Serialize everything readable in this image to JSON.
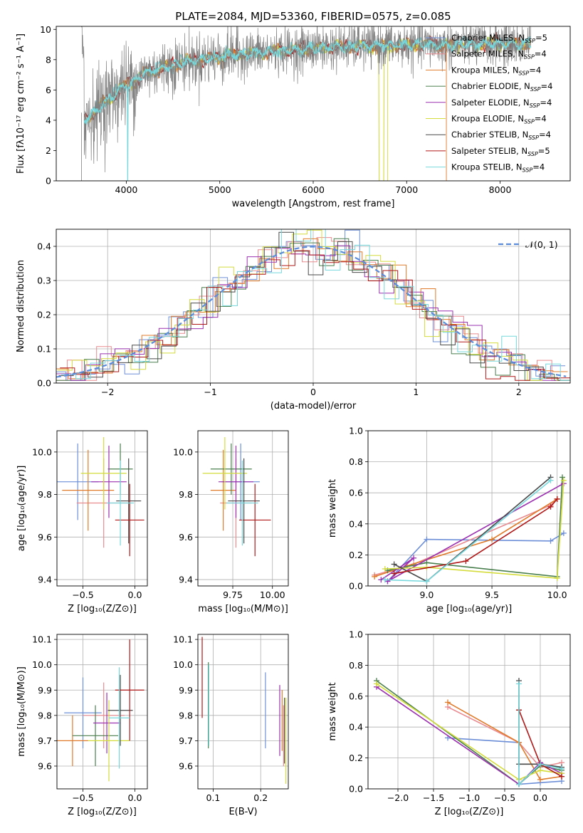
{
  "figure": {
    "title": "PLATE=2084, MJD=53360, FIBERID=0575, z=0.085"
  },
  "colors": {
    "Chabrier MILES": "#6d8fd8",
    "Salpeter MILES": "#e98a8f",
    "Kroupa MILES": "#e07b2b",
    "Chabrier ELODIE": "#4a7f4e",
    "Salpeter ELODIE": "#9b30b0",
    "Kroupa ELODIE": "#d4dc3c",
    "Chabrier STELIB": "#4a4a4a",
    "Salpeter STELIB": "#b01818",
    "Kroupa STELIB": "#76d8dc",
    "data": "#808080",
    "gaussian": "#5b8cdc"
  },
  "chart_data": [
    {
      "id": "spectrum",
      "type": "line",
      "xlabel": "wavelength [Angstrom, rest frame]",
      "ylabel": "Flux [fλ10⁻¹⁷ erg cm⁻² s⁻¹ A⁻¹]",
      "xlim": [
        3250,
        8750
      ],
      "ylim": [
        0,
        10.2
      ],
      "xticks": [
        "4000",
        "5000",
        "6000",
        "7000",
        "8000"
      ],
      "yticks": [
        "0",
        "2",
        "4",
        "6",
        "8",
        "10"
      ],
      "grid": false,
      "legend_position": "right",
      "legend": [
        "Chabrier MILES, N_SSP=5",
        "Salpeter MILES, N_SSP=4",
        "Kroupa MILES, N_SSP=4",
        "Chabrier ELODIE, N_SSP=4",
        "Salpeter ELODIE, N_SSP=4",
        "Kroupa ELODIE, N_SSP=4",
        "Chabrier STELIB, N_SSP=4",
        "Salpeter STELIB, N_SSP=5",
        "Kroupa STELIB, N_SSP=4"
      ],
      "continuum": {
        "x": [
          3550,
          3650,
          3750,
          3850,
          3950,
          4050,
          4200,
          4400,
          4600,
          4800,
          5000,
          5200,
          5400,
          5600,
          5800,
          6000,
          6200,
          6400,
          6600,
          6800,
          7000,
          7200,
          7400,
          7600,
          7800,
          8000,
          8200,
          8330
        ],
        "y": [
          4.0,
          4.5,
          5.1,
          5.6,
          6.1,
          6.5,
          7.1,
          7.5,
          7.8,
          8.0,
          8.2,
          8.35,
          8.45,
          8.55,
          8.65,
          8.75,
          8.82,
          8.88,
          8.9,
          8.95,
          8.97,
          9.0,
          8.95,
          9.05,
          9.0,
          9.1,
          9.0,
          9.05
        ]
      }
    },
    {
      "id": "residuals",
      "type": "line",
      "xlabel": "(data-model)/error",
      "ylabel": "Normed distribution",
      "xlim": [
        -2.5,
        2.5
      ],
      "ylim": [
        0,
        0.45
      ],
      "xticks": [
        "-2",
        "-1",
        "0",
        "1",
        "2"
      ],
      "yticks": [
        "0.0",
        "0.1",
        "0.2",
        "0.3",
        "0.4"
      ],
      "grid": true,
      "legend_position": "top-right",
      "legend": [
        "𝒩(0, 1)"
      ],
      "bins": {
        "min": -2.5,
        "max": 2.5,
        "count": 35
      }
    },
    {
      "id": "age_vs_Z",
      "type": "scatter",
      "xlabel": "Z [log₁₀(Z/Z⊙)]",
      "ylabel": "age  [log₁₀(age/yr)]",
      "xlim": [
        -0.75,
        0.12
      ],
      "ylim": [
        9.37,
        10.1
      ],
      "xticks": [
        "-0.5",
        "0.0"
      ],
      "yticks": [
        "9.4",
        "9.6",
        "9.8",
        "10.0"
      ],
      "grid": true,
      "points": [
        {
          "model": "Chabrier MILES",
          "x": -0.55,
          "xerr": 0.2,
          "y": 9.86,
          "yerr": 0.18
        },
        {
          "model": "Salpeter MILES",
          "x": -0.3,
          "xerr": 0.26,
          "y": 9.76,
          "yerr": 0.21
        },
        {
          "model": "Kroupa MILES",
          "x": -0.45,
          "xerr": 0.25,
          "y": 9.82,
          "yerr": 0.19
        },
        {
          "model": "Chabrier ELODIE",
          "x": -0.14,
          "xerr": 0.12,
          "y": 9.92,
          "yerr": 0.12
        },
        {
          "model": "Salpeter ELODIE",
          "x": -0.25,
          "xerr": 0.17,
          "y": 9.86,
          "yerr": 0.17
        },
        {
          "model": "Kroupa ELODIE",
          "x": -0.3,
          "xerr": 0.22,
          "y": 9.9,
          "yerr": 0.17
        },
        {
          "model": "Chabrier STELIB",
          "x": -0.06,
          "xerr": 0.12,
          "y": 9.77,
          "yerr": 0.2
        },
        {
          "model": "Salpeter STELIB",
          "x": -0.05,
          "xerr": 0.14,
          "y": 9.68,
          "yerr": 0.17
        },
        {
          "model": "Kroupa STELIB",
          "x": -0.14,
          "xerr": 0.13,
          "y": 9.76,
          "yerr": 0.2
        }
      ]
    },
    {
      "id": "age_vs_mass",
      "type": "scatter",
      "xlabel": "mass [log₁₀(M/M⊙)]",
      "ylabel": "",
      "xlim": [
        9.53,
        10.1
      ],
      "ylim": [
        9.37,
        10.1
      ],
      "xticks": [
        "9.75",
        "10.00"
      ],
      "yticks": [
        "9.4",
        "9.6",
        "9.8",
        "10.0"
      ],
      "grid": true,
      "points": [
        {
          "model": "Chabrier MILES",
          "x": 9.8,
          "xerr": 0.12,
          "y": 9.86,
          "yerr": 0.18
        },
        {
          "model": "Salpeter MILES",
          "x": 9.77,
          "xerr": 0.1,
          "y": 9.76,
          "yerr": 0.21
        },
        {
          "model": "Kroupa MILES",
          "x": 9.69,
          "xerr": 0.08,
          "y": 9.82,
          "yerr": 0.19
        },
        {
          "model": "Chabrier ELODIE",
          "x": 9.74,
          "xerr": 0.13,
          "y": 9.92,
          "yerr": 0.12
        },
        {
          "model": "Salpeter ELODIE",
          "x": 9.77,
          "xerr": 0.11,
          "y": 9.86,
          "yerr": 0.17
        },
        {
          "model": "Kroupa ELODIE",
          "x": 9.7,
          "xerr": 0.14,
          "y": 9.9,
          "yerr": 0.17
        },
        {
          "model": "Chabrier STELIB",
          "x": 9.82,
          "xerr": 0.1,
          "y": 9.77,
          "yerr": 0.2
        },
        {
          "model": "Salpeter STELIB",
          "x": 9.89,
          "xerr": 0.1,
          "y": 9.68,
          "yerr": 0.17
        },
        {
          "model": "Kroupa STELIB",
          "x": 9.81,
          "xerr": 0.1,
          "y": 9.76,
          "yerr": 0.2
        }
      ]
    },
    {
      "id": "weight_vs_age",
      "type": "line",
      "xlabel": "age  [log₁₀(age/yr)]",
      "ylabel": "mass weight",
      "xlim": [
        8.55,
        10.1
      ],
      "ylim": [
        0,
        1.0
      ],
      "xticks": [
        "9.0",
        "9.5",
        "10.0"
      ],
      "yticks": [
        "0.0",
        "0.2",
        "0.4",
        "0.6",
        "0.8",
        "1.0"
      ],
      "grid": true,
      "series": [
        {
          "model": "Chabrier MILES",
          "x": [
            8.7,
            9.0,
            9.95,
            10.05
          ],
          "y": [
            0.03,
            0.3,
            0.29,
            0.34
          ]
        },
        {
          "model": "Salpeter MILES",
          "x": [
            8.6,
            8.9,
            9.95,
            10.0
          ],
          "y": [
            0.07,
            0.14,
            0.52,
            0.56
          ]
        },
        {
          "model": "Kroupa MILES",
          "x": [
            8.6,
            8.85,
            9.5,
            10.0
          ],
          "y": [
            0.06,
            0.13,
            0.3,
            0.56
          ]
        },
        {
          "model": "Chabrier ELODIE",
          "x": [
            8.7,
            9.0,
            10.0,
            10.04
          ],
          "y": [
            0.1,
            0.15,
            0.06,
            0.7
          ]
        },
        {
          "model": "Salpeter ELODIE",
          "x": [
            8.65,
            8.9,
            8.7,
            10.05
          ],
          "y": [
            0.04,
            0.18,
            0.03,
            0.66
          ]
        },
        {
          "model": "Kroupa ELODIE",
          "x": [
            8.68,
            9.0,
            10.0,
            10.05
          ],
          "y": [
            0.11,
            0.12,
            0.05,
            0.68
          ]
        },
        {
          "model": "Chabrier STELIB",
          "x": [
            8.75,
            9.0,
            9.95
          ],
          "y": [
            0.14,
            0.03,
            0.7
          ]
        },
        {
          "model": "Salpeter STELIB",
          "x": [
            8.75,
            9.3,
            9.95,
            10.0
          ],
          "y": [
            0.08,
            0.16,
            0.51,
            0.56
          ]
        },
        {
          "model": "Kroupa STELIB",
          "x": [
            8.68,
            9.0,
            9.95
          ],
          "y": [
            0.04,
            0.03,
            0.68
          ]
        }
      ]
    },
    {
      "id": "mass_vs_Z",
      "type": "scatter",
      "xlabel": "Z [log₁₀(Z/Z⊙)]",
      "ylabel": "mass [log₁₀(M/M⊙)]",
      "xlim": [
        -0.75,
        0.12
      ],
      "ylim": [
        9.51,
        10.12
      ],
      "xticks": [
        "-0.5",
        "0.0"
      ],
      "yticks": [
        "9.6",
        "9.7",
        "9.8",
        "9.9",
        "10.0",
        "10.1"
      ],
      "grid": true,
      "points": [
        {
          "model": "Chabrier MILES",
          "x": -0.5,
          "xerr": 0.18,
          "y": 9.81,
          "yerr": 0.14
        },
        {
          "model": "Salpeter MILES",
          "x": -0.3,
          "xerr": 0.2,
          "y": 9.8,
          "yerr": 0.13
        },
        {
          "model": "Kroupa MILES",
          "x": -0.6,
          "xerr": 0.15,
          "y": 9.7,
          "yerr": 0.1
        },
        {
          "model": "Chabrier ELODIE",
          "x": -0.38,
          "xerr": 0.22,
          "y": 9.72,
          "yerr": 0.12
        },
        {
          "model": "Salpeter ELODIE",
          "x": -0.27,
          "xerr": 0.13,
          "y": 9.77,
          "yerr": 0.12
        },
        {
          "model": "Kroupa ELODIE",
          "x": -0.25,
          "xerr": 0.2,
          "y": 9.7,
          "yerr": 0.16
        },
        {
          "model": "Chabrier STELIB",
          "x": -0.14,
          "xerr": 0.12,
          "y": 9.82,
          "yerr": 0.14
        },
        {
          "model": "Salpeter STELIB",
          "x": -0.05,
          "xerr": 0.14,
          "y": 9.9,
          "yerr": 0.2
        },
        {
          "model": "Kroupa STELIB",
          "x": -0.15,
          "xerr": 0.1,
          "y": 9.79,
          "yerr": 0.2
        }
      ]
    },
    {
      "id": "mass_vs_ebv",
      "type": "scatter",
      "xlabel": "E(B-V)",
      "ylabel": "",
      "xlim": [
        0.068,
        0.258
      ],
      "ylim": [
        9.51,
        10.12
      ],
      "xticks": [
        "0.1",
        "0.2"
      ],
      "yticks": [
        "9.6",
        "9.7",
        "9.8",
        "9.9",
        "10.0",
        "10.1"
      ],
      "grid": true,
      "points": [
        {
          "model": "Chabrier MILES",
          "x": 0.21,
          "y": 9.82,
          "yerr": 0.15
        },
        {
          "model": "Salpeter MILES",
          "x": 0.248,
          "y": 9.72,
          "yerr": 0.12
        },
        {
          "model": "Kroupa MILES",
          "x": 0.245,
          "y": 9.78,
          "yerr": 0.12
        },
        {
          "model": "Chabrier ELODIE",
          "x": 0.09,
          "y": 9.84,
          "yerr": 0.17
        },
        {
          "model": "Salpeter ELODIE",
          "x": 0.24,
          "y": 9.78,
          "yerr": 0.14
        },
        {
          "model": "Kroupa ELODIE",
          "x": 0.253,
          "y": 9.7,
          "yerr": 0.17
        },
        {
          "model": "Chabrier STELIB",
          "x": 0.25,
          "y": 9.74,
          "yerr": 0.13
        },
        {
          "model": "Salpeter STELIB",
          "x": 0.077,
          "y": 9.95,
          "yerr": 0.16
        },
        {
          "model": "Kroupa STELIB",
          "x": 0.091,
          "y": 9.84,
          "yerr": 0.16
        }
      ]
    },
    {
      "id": "weight_vs_Z",
      "type": "line",
      "xlabel": "Z [log₁₀(Z/Z⊙)]",
      "ylabel": "mass weight",
      "xlim": [
        -2.42,
        0.42
      ],
      "ylim": [
        0,
        1.0
      ],
      "xticks": [
        "-2.0",
        "-1.5",
        "-1.0",
        "-0.5",
        "0.0"
      ],
      "yticks": [
        "0.0",
        "0.2",
        "0.4",
        "0.6",
        "0.8",
        "1.0"
      ],
      "grid": true,
      "series": [
        {
          "model": "Chabrier MILES",
          "x": [
            -1.3,
            -0.3,
            -0.3,
            0.0,
            0.3
          ],
          "y": [
            0.33,
            0.3,
            0.03,
            0.04,
            0.05
          ]
        },
        {
          "model": "Salpeter MILES",
          "x": [
            -1.3,
            -0.3,
            0.0,
            0.3
          ],
          "y": [
            0.53,
            0.3,
            0.14,
            0.17
          ]
        },
        {
          "model": "Kroupa MILES",
          "x": [
            -1.3,
            -0.3,
            0.0,
            0.3
          ],
          "y": [
            0.56,
            0.3,
            0.06,
            0.08
          ]
        },
        {
          "model": "Chabrier ELODIE",
          "x": [
            -2.3,
            -0.3,
            0.0,
            0.3
          ],
          "y": [
            0.7,
            0.03,
            0.15,
            0.12
          ]
        },
        {
          "model": "Salpeter ELODIE",
          "x": [
            -2.3,
            -0.3,
            0.0,
            0.3
          ],
          "y": [
            0.66,
            0.03,
            0.17,
            0.1
          ]
        },
        {
          "model": "Kroupa ELODIE",
          "x": [
            -2.3,
            -0.3,
            0.0,
            0.3
          ],
          "y": [
            0.68,
            0.06,
            0.12,
            0.1
          ]
        },
        {
          "model": "Chabrier STELIB",
          "x": [
            -0.3,
            -0.3,
            0.0,
            0.3
          ],
          "y": [
            0.7,
            0.16,
            0.16,
            0.14
          ]
        },
        {
          "model": "Salpeter STELIB",
          "x": [
            -0.3,
            -0.3,
            0.0,
            0.3
          ],
          "y": [
            0.51,
            0.51,
            0.16,
            0.08
          ]
        },
        {
          "model": "Kroupa STELIB",
          "x": [
            -0.3,
            -0.3,
            0.0,
            0.3
          ],
          "y": [
            0.68,
            0.03,
            0.16,
            0.13
          ]
        }
      ]
    }
  ]
}
